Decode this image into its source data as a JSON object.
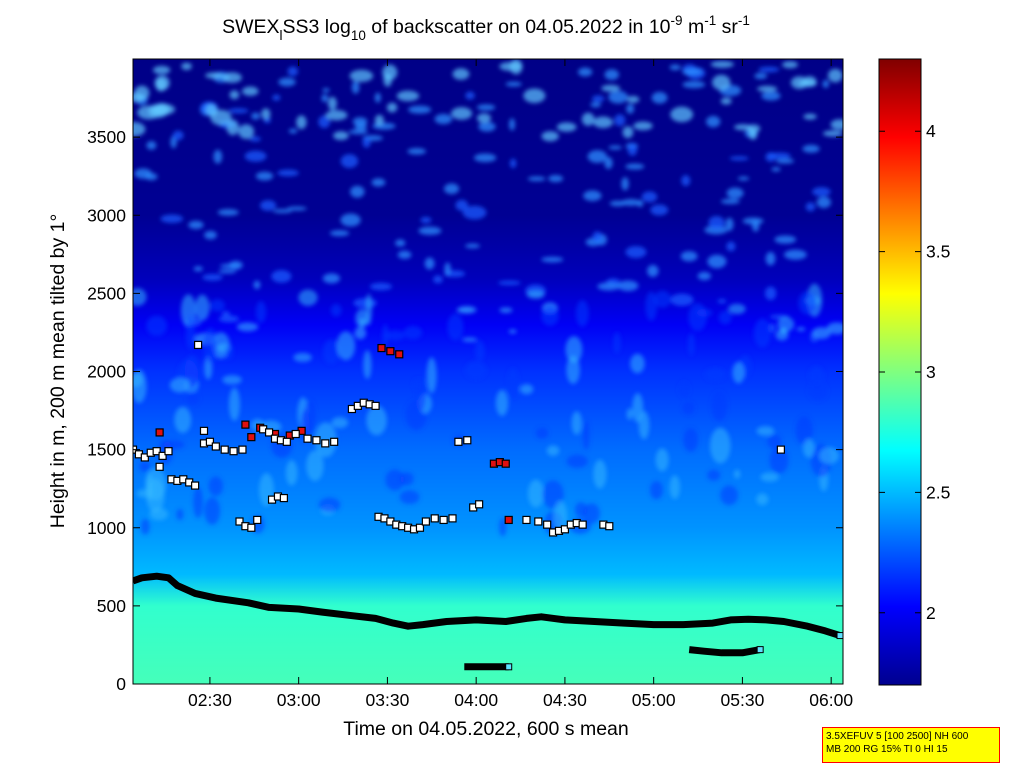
{
  "chart_data": {
    "type": "heatmap",
    "title": {
      "prefix": "SWEX",
      "sub1": "l",
      "mid": "SS3 log",
      "sub2": "10",
      "rest": " of backscatter on 04.05.2022 in 10",
      "sup1": "-9",
      "unit1": " m",
      "sup2": "-1",
      "unit2": " sr",
      "sup3": "-1"
    },
    "xlabel": "Time on 04.05.2022, 600 s mean",
    "ylabel": "Height in m, 200 m mean tilted by 1°",
    "x_ticks": [
      {
        "t": 150,
        "label": "02:30"
      },
      {
        "t": 180,
        "label": "03:00"
      },
      {
        "t": 210,
        "label": "03:30"
      },
      {
        "t": 240,
        "label": "04:00"
      },
      {
        "t": 270,
        "label": "04:30"
      },
      {
        "t": 300,
        "label": "05:00"
      },
      {
        "t": 330,
        "label": "05:30"
      },
      {
        "t": 360,
        "label": "06:00"
      }
    ],
    "xlim_minutes": [
      124,
      364
    ],
    "y_ticks": [
      0,
      500,
      1000,
      1500,
      2000,
      2500,
      3000,
      3500
    ],
    "ylim": [
      0,
      4000
    ],
    "colorbar": {
      "range": [
        1.7,
        4.3
      ],
      "ticks": [
        2,
        2.5,
        3,
        3.5,
        4
      ],
      "colormap": "jet"
    },
    "colors": {
      "dark_blue": "#00008f",
      "mid_blue": "#0050ff",
      "cyan": "#00dcff",
      "green": "#50ff9f",
      "yellow": "#ffff00",
      "red": "#ff0000",
      "dark_red": "#800000"
    },
    "backscatter_profile": {
      "height_m": [
        0,
        500,
        700,
        1000,
        1500,
        2000,
        2300,
        2600,
        3000,
        4000
      ],
      "log10_value": [
        2.85,
        2.8,
        2.5,
        2.4,
        2.3,
        2.15,
        2.0,
        1.85,
        1.75,
        1.72
      ]
    },
    "boundary_layer_top": {
      "time_min": [
        124,
        127,
        132,
        136,
        139,
        145,
        152,
        163,
        170,
        180,
        188,
        197,
        206,
        212,
        217,
        222,
        230,
        240,
        250,
        257,
        262,
        270,
        280,
        290,
        300,
        310,
        320,
        326,
        332,
        338,
        344,
        352,
        358,
        363
      ],
      "height_m": [
        660,
        680,
        690,
        680,
        630,
        580,
        550,
        520,
        490,
        480,
        460,
        440,
        420,
        390,
        370,
        380,
        400,
        410,
        400,
        420,
        430,
        410,
        400,
        390,
        380,
        380,
        390,
        410,
        415,
        410,
        400,
        370,
        340,
        310
      ]
    },
    "low_layer_segments": [
      {
        "time_min": [
          236,
          251
        ],
        "height_m": [
          110,
          110
        ]
      },
      {
        "time_min": [
          312,
          317,
          323,
          330,
          336
        ],
        "height_m": [
          220,
          210,
          200,
          200,
          220
        ]
      }
    ],
    "detections": [
      {
        "time_min": [
          124,
          126,
          128,
          130,
          132,
          134,
          136,
          133
        ],
        "height_m": [
          1500,
          1470,
          1450,
          1480,
          1490,
          1460,
          1490,
          1390
        ],
        "class": "white"
      },
      {
        "time_min": [
          133
        ],
        "height_m": [
          1610
        ],
        "class": "red"
      },
      {
        "time_min": [
          137,
          139,
          141,
          143,
          145
        ],
        "height_m": [
          1310,
          1300,
          1310,
          1290,
          1270
        ],
        "class": "white"
      },
      {
        "time_min": [
          146,
          148,
          150,
          152,
          155,
          158,
          161
        ],
        "height_m": [
          2170,
          1540,
          1550,
          1520,
          1500,
          1490,
          1500
        ],
        "class": "white"
      },
      {
        "time_min": [
          148
        ],
        "height_m": [
          1620
        ],
        "class": "white"
      },
      {
        "time_min": [
          160,
          162,
          164,
          166
        ],
        "height_m": [
          1040,
          1010,
          1000,
          1050
        ],
        "class": "white"
      },
      {
        "time_min": [
          162,
          164,
          167,
          172,
          177,
          181
        ],
        "height_m": [
          1660,
          1580,
          1640,
          1600,
          1590,
          1620
        ],
        "class": "red"
      },
      {
        "time_min": [
          168,
          170,
          172,
          174,
          176,
          179,
          183,
          186,
          189,
          192
        ],
        "height_m": [
          1630,
          1610,
          1570,
          1560,
          1550,
          1600,
          1570,
          1560,
          1540,
          1550
        ],
        "class": "white"
      },
      {
        "time_min": [
          171,
          173,
          175
        ],
        "height_m": [
          1180,
          1200,
          1190
        ],
        "class": "white"
      },
      {
        "time_min": [
          198,
          200,
          202,
          204,
          206
        ],
        "height_m": [
          1760,
          1780,
          1800,
          1790,
          1780
        ],
        "class": "white"
      },
      {
        "time_min": [
          207,
          209,
          211,
          213,
          215,
          217,
          219,
          221
        ],
        "height_m": [
          1070,
          1060,
          1040,
          1020,
          1010,
          1000,
          990,
          1000
        ],
        "class": "white"
      },
      {
        "time_min": [
          208,
          211,
          214
        ],
        "height_m": [
          2150,
          2130,
          2110
        ],
        "class": "red"
      },
      {
        "time_min": [
          223,
          226,
          229,
          232
        ],
        "height_m": [
          1040,
          1060,
          1050,
          1060
        ],
        "class": "white"
      },
      {
        "time_min": [
          234,
          237,
          239,
          241
        ],
        "height_m": [
          1550,
          1560,
          1130,
          1150
        ],
        "class": "white"
      },
      {
        "time_min": [
          246,
          248,
          250
        ],
        "height_m": [
          1410,
          1420,
          1410
        ],
        "class": "red"
      },
      {
        "time_min": [
          251
        ],
        "height_m": [
          1050
        ],
        "class": "red"
      },
      {
        "time_min": [
          257,
          261,
          264,
          266,
          268,
          270,
          272
        ],
        "height_m": [
          1050,
          1040,
          1020,
          970,
          980,
          990,
          1020
        ],
        "class": "white"
      },
      {
        "time_min": [
          274,
          276,
          283,
          285
        ],
        "height_m": [
          1030,
          1020,
          1020,
          1010
        ],
        "class": "white"
      },
      {
        "time_min": [
          343
        ],
        "height_m": [
          1500
        ],
        "class": "white"
      }
    ]
  },
  "info_box": {
    "line1": "3.5XEFUV 5 [100 2500] NH 600",
    "line2": "MB 200 RG 15% TI 0 HI 15"
  }
}
